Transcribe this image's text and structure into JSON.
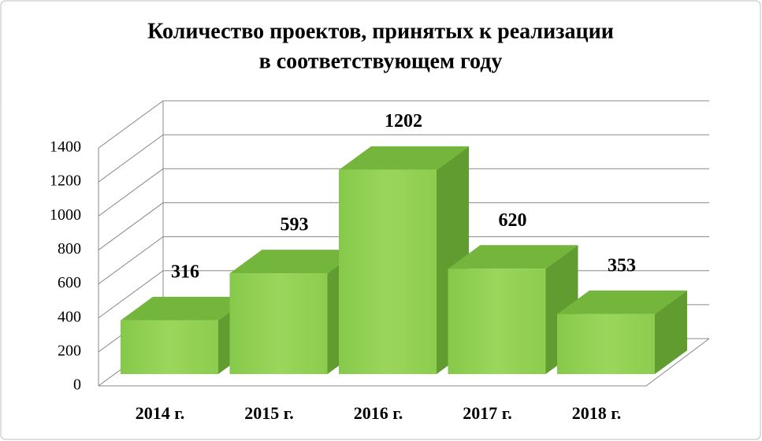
{
  "chart_data": {
    "type": "bar3d",
    "title": [
      "Количество проектов, принятых к реализации",
      "в соответствующем году"
    ],
    "categories": [
      "2014 г.",
      "2015 г.",
      "2016 г.",
      "2017 г.",
      "2018 г."
    ],
    "values": [
      316,
      593,
      1202,
      620,
      353
    ],
    "color": "#8fd14f",
    "ylim": [
      0,
      1400
    ],
    "yticks": [
      0,
      200,
      400,
      600,
      800,
      1000,
      1200,
      1400
    ],
    "grid": true
  }
}
